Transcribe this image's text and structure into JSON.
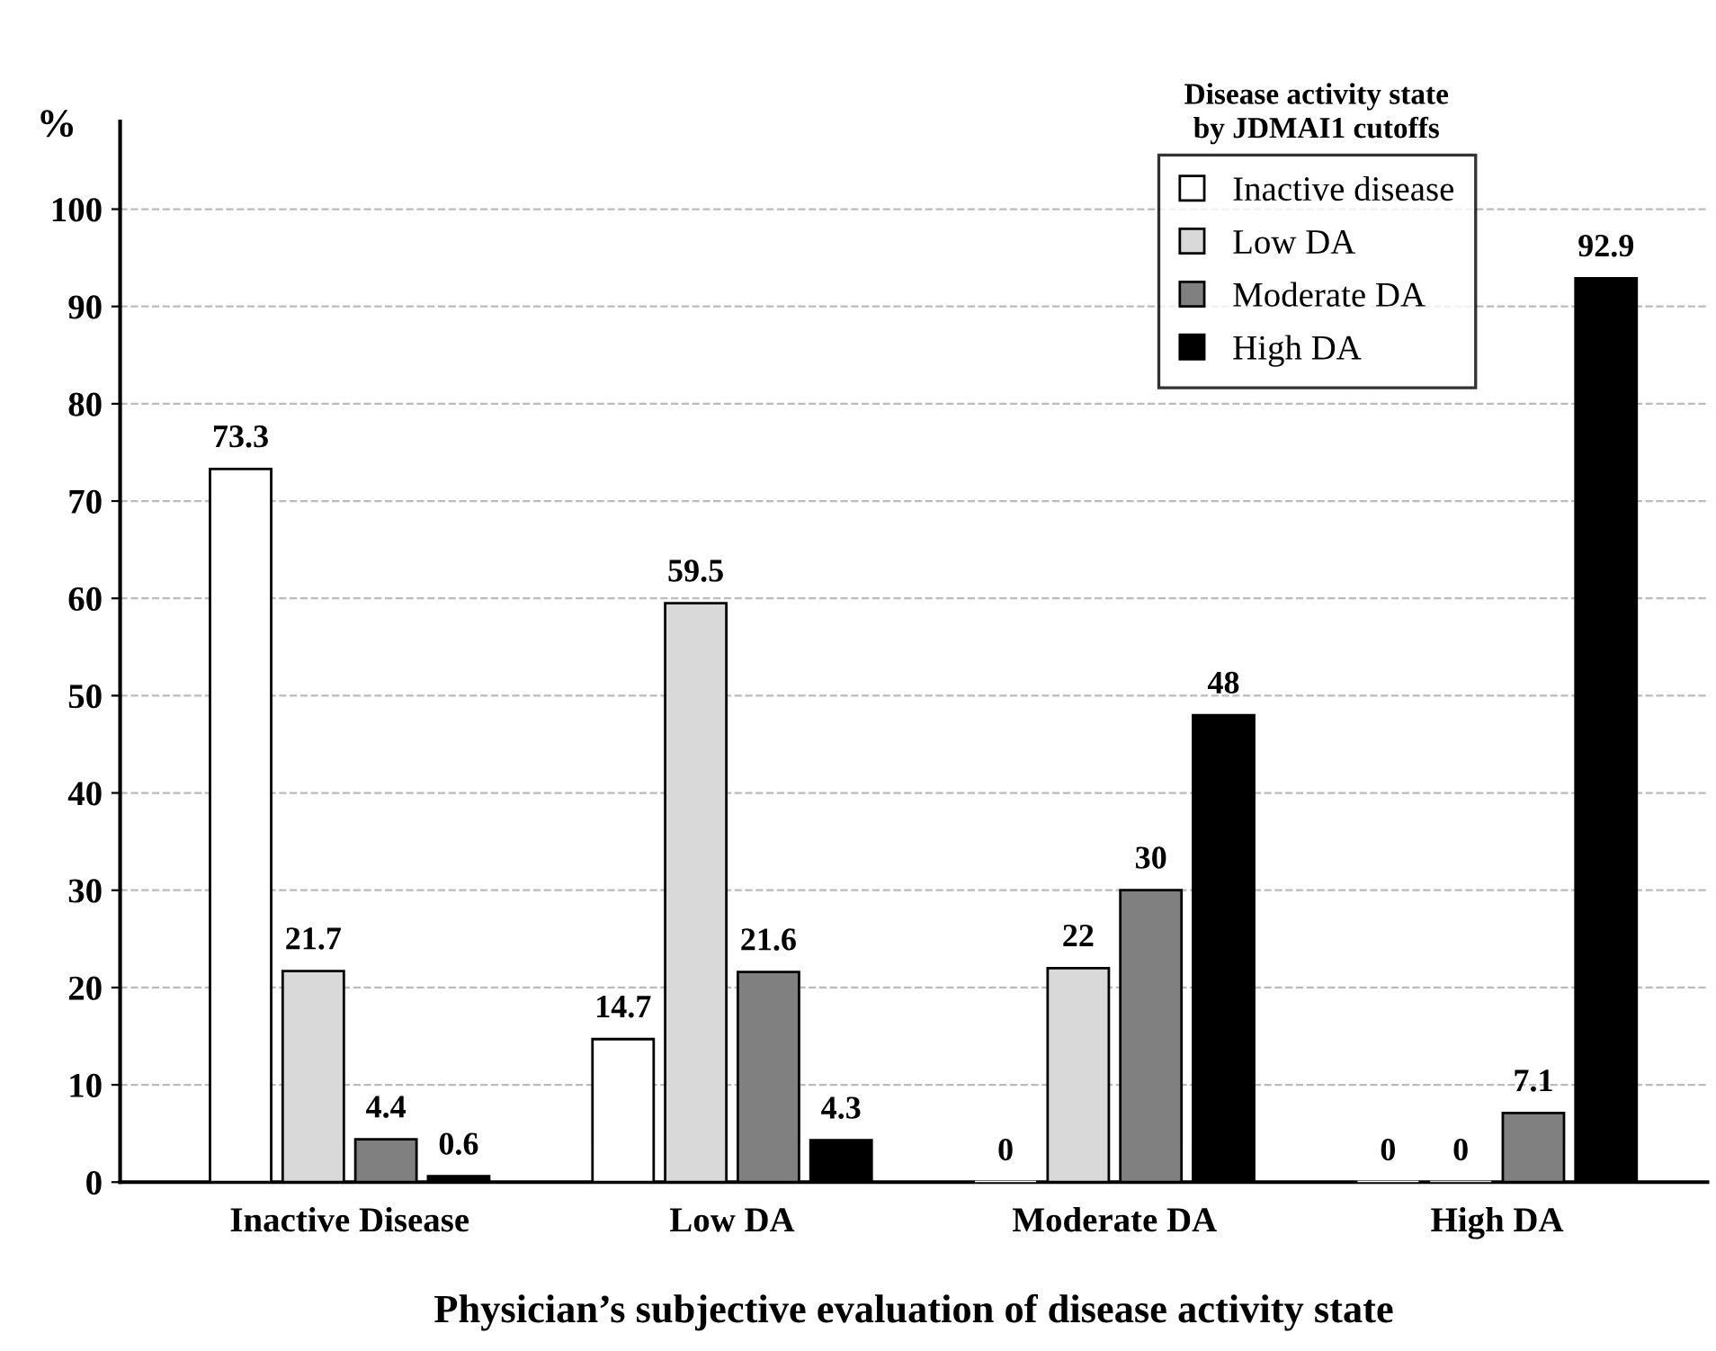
{
  "chart_data": {
    "type": "bar",
    "xlabel": "Physician’s subjective evaluation of disease activity state",
    "ylabel": "%",
    "legend_title": "Disease activity state\nby JDMAI1 cutoffs",
    "categories": [
      "Inactive Disease",
      "Low DA",
      "Moderate DA",
      "High DA"
    ],
    "series": [
      {
        "name": "Inactive disease",
        "color": "#ffffff",
        "values": [
          73.3,
          14.7,
          0,
          0
        ]
      },
      {
        "name": "Low DA",
        "color": "#d9d9d9",
        "values": [
          21.7,
          59.5,
          22,
          0
        ]
      },
      {
        "name": "Moderate DA",
        "color": "#808080",
        "values": [
          4.4,
          21.6,
          30,
          7.1
        ]
      },
      {
        "name": "High DA",
        "color": "#000000",
        "values": [
          0.6,
          4.3,
          48,
          92.9
        ]
      }
    ],
    "ylim": [
      0,
      109
    ],
    "yticks": [
      0,
      10,
      20,
      30,
      40,
      50,
      60,
      70,
      80,
      90,
      100
    ],
    "grid": "y",
    "legend": "top right",
    "data_labels": true
  }
}
